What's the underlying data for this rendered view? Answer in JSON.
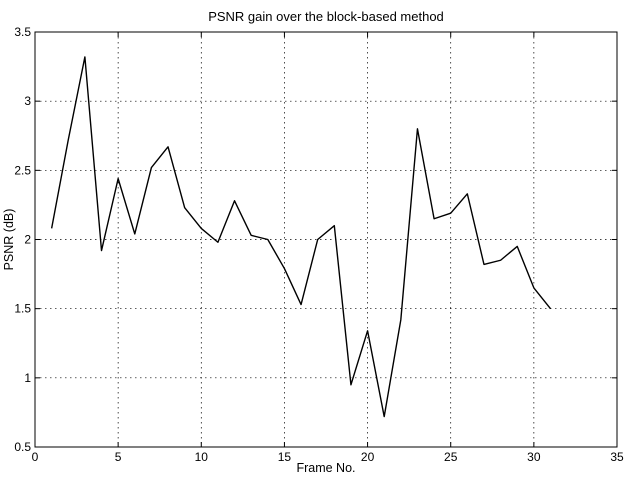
{
  "chart_data": {
    "type": "line",
    "title": "PSNR gain over the block-based method",
    "xlabel": "Frame No.",
    "ylabel": "PSNR (dB)",
    "xlim": [
      0,
      35
    ],
    "ylim": [
      0.5,
      3.5
    ],
    "xticks": [
      0,
      5,
      10,
      15,
      20,
      25,
      30,
      35
    ],
    "yticks": [
      0.5,
      1,
      1.5,
      2,
      2.5,
      3,
      3.5
    ],
    "xtick_labels": [
      "0",
      "5",
      "10",
      "15",
      "20",
      "25",
      "30",
      "35"
    ],
    "ytick_labels": [
      "0.5",
      "1",
      "1.5",
      "2",
      "2.5",
      "3",
      "3.5"
    ],
    "grid": true,
    "series": [
      {
        "x": [
          1,
          2,
          3,
          4,
          5,
          6,
          7,
          8,
          9,
          10,
          11,
          12,
          13,
          14,
          15,
          16,
          17,
          18,
          19,
          20,
          21,
          22,
          23,
          24,
          25,
          26,
          27,
          28,
          29,
          30,
          31
        ],
        "values": [
          2.08,
          2.72,
          3.32,
          1.92,
          2.44,
          2.04,
          2.52,
          2.67,
          2.23,
          2.08,
          1.98,
          2.28,
          2.03,
          2.0,
          1.79,
          1.53,
          2.0,
          2.1,
          0.95,
          1.34,
          0.72,
          1.42,
          2.8,
          2.15,
          2.19,
          2.33,
          1.82,
          1.85,
          1.95,
          1.65,
          1.5
        ]
      }
    ]
  }
}
